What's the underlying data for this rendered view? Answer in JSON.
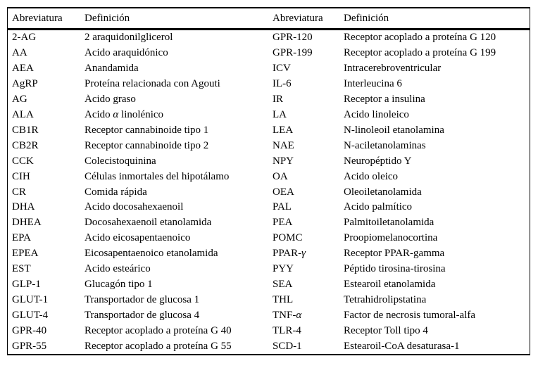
{
  "page": {
    "background_color": "#ffffff",
    "text_color": "#000000",
    "rule_color": "#000000"
  },
  "table": {
    "headers": [
      "Abreviatura",
      "Definición",
      "Abreviatura",
      "Definición"
    ],
    "rows": [
      [
        "2-AG",
        "2 araquidonilglicerol",
        "GPR-120",
        "Receptor acoplado a proteína G 120"
      ],
      [
        "AA",
        "Ácido araquidónico",
        "GPR-199",
        "Receptor acoplado a proteína G 199"
      ],
      [
        "AEA",
        "Anandamida",
        "ICV",
        "Intracerebroventricular"
      ],
      [
        "AgRP",
        "Proteína relacionada con Agouti",
        "IL-6",
        "Interleucina 6"
      ],
      [
        "AG",
        "Ácido graso",
        "IR",
        "Receptor a insulina"
      ],
      [
        "ALA",
        "Ácido α linolénico",
        "LA",
        "Ácido linoleico"
      ],
      [
        "CB1R",
        "Receptor cannabinoide tipo 1",
        "LEA",
        "N-linoleoil etanolamina"
      ],
      [
        "CB2R",
        "Receptor cannabinoide tipo 2",
        "NAE",
        "N-aciletanolaminas"
      ],
      [
        "CCK",
        "Colecistoquinina",
        "NPY",
        "Neuropéptido Y"
      ],
      [
        "CIH",
        "Células inmortales del hipotálamo",
        "OA",
        "Ácido oleico"
      ],
      [
        "CR",
        "Comida rápida",
        "OEA",
        "Oleoiletanolamida"
      ],
      [
        "DHA",
        "Ácido docosahexaenoil",
        "PAL",
        "Ácido palmítico"
      ],
      [
        "DHEA",
        "Docosahexaenoil etanolamida",
        "PEA",
        "Palmitoiletanolamida"
      ],
      [
        "EPA",
        "Ácido eicosapentaenoico",
        "POMC",
        "Proopiomelanocortina"
      ],
      [
        "EPEA",
        "Eicosapentaenoico etanolamida",
        "PPAR-γ",
        "Receptor PPAR-gamma"
      ],
      [
        "EST",
        "Ácido esteárico",
        "PYY",
        "Péptido tirosina-tirosina"
      ],
      [
        "GLP-1",
        "Glucagón tipo 1",
        "SEA",
        "Estearoil etanolamida"
      ],
      [
        "GLUT-1",
        "Transportador de glucosa 1",
        "THL",
        "Tetrahidrolipstatina"
      ],
      [
        "GLUT-4",
        "Transportador de glucosa 4",
        "TNF-α",
        "Factor de necrosis tumoral-alfa"
      ],
      [
        "GPR-40",
        "Receptor acoplado a proteína G 40",
        "TLR-4",
        "Receptor Toll tipo 4"
      ],
      [
        "GPR-55",
        "Receptor acoplado a proteína G 55",
        "SCD-1",
        "Estearoil-CoA desaturasa-1"
      ]
    ]
  }
}
